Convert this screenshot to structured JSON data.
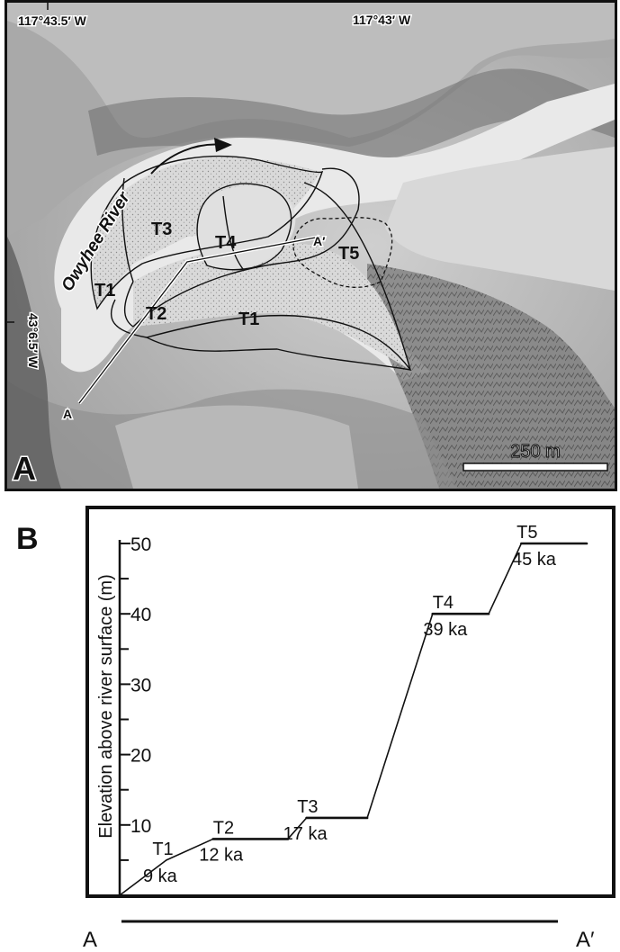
{
  "panel_a": {
    "letter": "A",
    "coords": {
      "lon_left": "117°43.5′ W",
      "lon_right": "117°43′ W",
      "lat": "43°6.5′ W"
    },
    "river_label": "Owyhee River",
    "terrace_labels": [
      "T3",
      "T4",
      "T5",
      "T1",
      "T2",
      "T1"
    ],
    "section_start": "A",
    "section_end": "A′",
    "scale_bar": "250 m"
  },
  "panel_b": {
    "letter": "B",
    "section_start": "A",
    "section_end": "A′",
    "chart_data": {
      "type": "line",
      "ylabel": "Elevation above river surface (m)",
      "ylim": [
        0,
        50
      ],
      "yticks_major": [
        10,
        20,
        30,
        40,
        50
      ],
      "terraces": [
        {
          "name": "T1",
          "age": "9 ka",
          "elevation": 5
        },
        {
          "name": "T2",
          "age": "12 ka",
          "elevation": 8
        },
        {
          "name": "T3",
          "age": "17 ka",
          "elevation": 11
        },
        {
          "name": "T4",
          "age": "39 ka",
          "elevation": 40
        },
        {
          "name": "T5",
          "age": "45 ka",
          "elevation": 50
        }
      ],
      "profile": [
        [
          0,
          0
        ],
        [
          0.1,
          5
        ],
        [
          0.2,
          8
        ],
        [
          0.36,
          8
        ],
        [
          0.4,
          11
        ],
        [
          0.53,
          11
        ],
        [
          0.67,
          40
        ],
        [
          0.79,
          40
        ],
        [
          0.86,
          50
        ],
        [
          1,
          50
        ]
      ]
    }
  }
}
